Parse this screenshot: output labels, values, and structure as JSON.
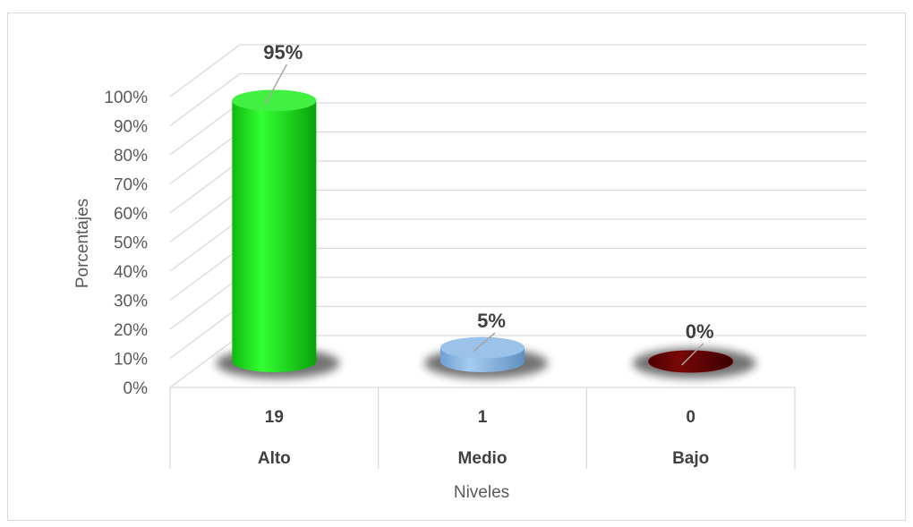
{
  "chart_data": {
    "type": "bar",
    "style": "3d-cylinder",
    "categories": [
      "Alto",
      "Medio",
      "Bajo"
    ],
    "counts": [
      "19",
      "1",
      "0"
    ],
    "values": [
      95,
      5,
      0
    ],
    "data_labels": [
      "95%",
      "5%",
      "0%"
    ],
    "colors": [
      "#22ee22",
      "#8ab8e6",
      "#6b0000"
    ],
    "ylabel": "Porcentajes",
    "xlabel": "Niveles",
    "ylim": [
      0,
      100
    ],
    "yticks": [
      "0%",
      "10%",
      "20%",
      "30%",
      "40%",
      "50%",
      "60%",
      "70%",
      "80%",
      "90%",
      "100%"
    ],
    "grid": true,
    "legend": "none"
  }
}
